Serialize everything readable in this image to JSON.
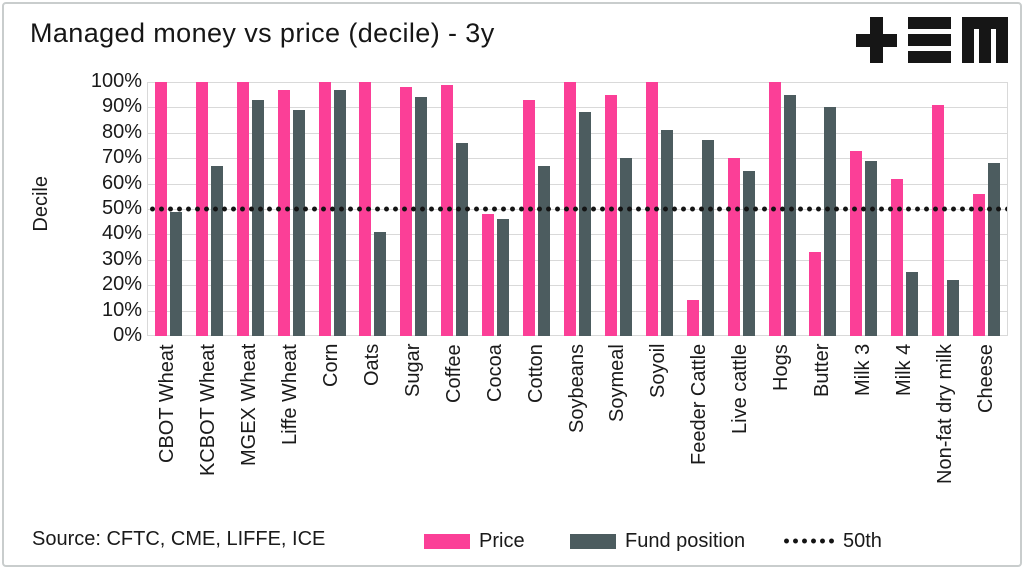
{
  "header": {
    "logo_name": "tem-logo"
  },
  "chart_data": {
    "type": "bar",
    "title": "Managed money vs price (decile) - 3y",
    "xlabel": "",
    "ylabel": "Decile",
    "ylim": [
      0,
      100
    ],
    "yticks": [
      100,
      90,
      80,
      70,
      60,
      50,
      40,
      30,
      20,
      10,
      0
    ],
    "ytick_suffix": "%",
    "grid": true,
    "legend_position": "bottom",
    "categories": [
      "CBOT Wheat",
      "KCBOT Wheat",
      "MGEX Wheat",
      "Liffe Wheat",
      "Corn",
      "Oats",
      "Sugar",
      "Coffee",
      "Cocoa",
      "Cotton",
      "Soybeans",
      "Soymeal",
      "Soyoil",
      "Feeder Cattle",
      "Live cattle",
      "Hogs",
      "Butter",
      "Milk 3",
      "Milk 4",
      "Non-fat dry milk",
      "Cheese"
    ],
    "series": [
      {
        "name": "Price",
        "color": "#fb3f97",
        "values": [
          100,
          100,
          100,
          97,
          100,
          100,
          98,
          99,
          48,
          93,
          100,
          95,
          100,
          14,
          70,
          100,
          33,
          73,
          62,
          91,
          56
        ]
      },
      {
        "name": "Fund position",
        "color": "#4c5c5f",
        "values": [
          49,
          67,
          93,
          89,
          97,
          41,
          94,
          76,
          46,
          67,
          88,
          70,
          81,
          77,
          65,
          95,
          90,
          69,
          25,
          22,
          68
        ]
      }
    ],
    "reference_line": {
      "label": "50th",
      "value": 50,
      "style": "dotted",
      "color": "#141414"
    }
  },
  "footer": {
    "source": "Source: CFTC, CME, LIFFE, ICE"
  },
  "colors": {
    "price": "#fb3f97",
    "fund": "#4c5c5f",
    "gridline": "#d9d9d9",
    "text": "#1a1a1a",
    "frame_border": "#c9cdcd",
    "logo": "#161616"
  }
}
